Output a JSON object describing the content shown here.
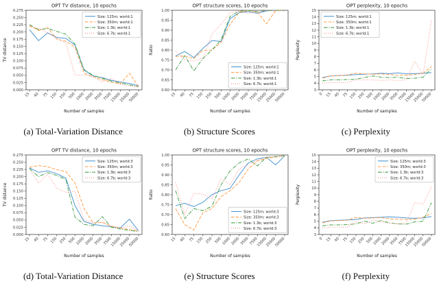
{
  "chart_data": [
    {
      "type": "line",
      "title": "OPT TV distance, 10 epochs",
      "xlabel": "Number of samples",
      "ylabel": "TV distance",
      "caption": "(a) Total-Variation Distance",
      "x": [
        "15",
        "40",
        "75",
        "150",
        "250",
        "500",
        "1000",
        "2000",
        "3500",
        "7500",
        "15000",
        "25000",
        "50000"
      ],
      "ylim": [
        0,
        0.275
      ],
      "yticks": [
        "0.000",
        "0.025",
        "0.050",
        "0.075",
        "0.100",
        "0.125",
        "0.150",
        "0.175",
        "0.200",
        "0.225",
        "0.250",
        "0.275"
      ],
      "grid": false,
      "legend_pos": "top-right",
      "series": [
        {
          "name": "Size: 125m; world:1",
          "color": "#4c96d0",
          "dash": "solid",
          "values": [
            0.208,
            0.17,
            0.197,
            0.181,
            0.178,
            0.155,
            0.068,
            0.048,
            0.042,
            0.033,
            0.027,
            0.022,
            0.014
          ]
        },
        {
          "name": "Size: 350m; world:1",
          "color": "#ff9e4a",
          "dash": "dashed",
          "values": [
            0.222,
            0.205,
            0.215,
            0.175,
            0.168,
            0.148,
            0.058,
            0.045,
            0.035,
            0.026,
            0.021,
            0.057,
            0.011
          ]
        },
        {
          "name": "Size: 1.3b; world:1",
          "color": "#46a049",
          "dash": "dashdot",
          "values": [
            0.225,
            0.208,
            0.212,
            0.202,
            0.192,
            0.158,
            0.07,
            0.05,
            0.04,
            0.03,
            0.024,
            0.017,
            0.011
          ]
        },
        {
          "name": "Size: 6.7b; world:1",
          "color": "#ff8e8a",
          "dash": "dotted",
          "values": [
            0.218,
            0.213,
            0.196,
            0.178,
            0.163,
            0.05,
            0.052,
            0.046,
            0.027,
            0.04,
            0.019,
            0.014,
            0.009
          ]
        }
      ]
    },
    {
      "type": "line",
      "title": "OPT structure scores, 10 epochs",
      "xlabel": "Number of samples",
      "ylabel": "Ratio",
      "caption": "(b) Structure Scores",
      "x": [
        "15",
        "40",
        "75",
        "150",
        "250",
        "500",
        "1000",
        "2000",
        "3500",
        "7500",
        "15000",
        "25000",
        "50000"
      ],
      "ylim": [
        0.6,
        1.0
      ],
      "yticks": [
        "0.60",
        "0.65",
        "0.70",
        "0.75",
        "0.80",
        "0.85",
        "0.90",
        "0.95",
        "1.00"
      ],
      "grid": false,
      "legend_pos": "bottom-right",
      "series": [
        {
          "name": "Size: 125m; world:1",
          "color": "#4c96d0",
          "dash": "solid",
          "values": [
            0.77,
            0.793,
            0.762,
            0.808,
            0.848,
            0.843,
            0.958,
            0.988,
            0.993,
            0.985,
            0.997,
            1.0,
            0.998
          ]
        },
        {
          "name": "Size: 350m; world:1",
          "color": "#ff9e4a",
          "dash": "dashed",
          "values": [
            0.768,
            0.77,
            0.757,
            0.798,
            0.8,
            0.838,
            0.93,
            0.99,
            0.998,
            0.992,
            0.932,
            0.998,
            1.0
          ]
        },
        {
          "name": "Size: 1.3b; world:1",
          "color": "#46a049",
          "dash": "dashdot",
          "values": [
            0.7,
            0.772,
            0.695,
            0.757,
            0.8,
            0.852,
            0.97,
            0.995,
            1.0,
            0.993,
            0.998,
            1.0,
            1.0
          ]
        },
        {
          "name": "Size: 6.7b; world:1",
          "color": "#ff8e8a",
          "dash": "dotted",
          "values": [
            0.795,
            0.752,
            0.745,
            0.76,
            0.88,
            0.93,
            0.988,
            0.998,
            0.985,
            0.99,
            1.0,
            0.997,
            1.0
          ]
        }
      ]
    },
    {
      "type": "line",
      "title": "OPT perplexity, 10 epochs",
      "xlabel": "Number of samples",
      "ylabel": "Perplexity",
      "caption": "(c) Perplexity",
      "x": [
        "0",
        "15",
        "40",
        "75",
        "150",
        "250",
        "500",
        "1000",
        "2000",
        "3500",
        "7500",
        "15000",
        "25000",
        "50000"
      ],
      "ylim": [
        3,
        15
      ],
      "yticks": [
        "3",
        "4",
        "5",
        "6",
        "7",
        "8",
        "9",
        "10",
        "11",
        "12",
        "13",
        "14",
        "15"
      ],
      "grid": false,
      "legend_pos": "top-left",
      "series": [
        {
          "name": "Size: 125m; world:1",
          "color": "#4c96d0",
          "dash": "solid",
          "values": [
            4.85,
            5.1,
            5.15,
            5.2,
            5.3,
            5.35,
            5.4,
            5.5,
            5.45,
            5.55,
            5.4,
            5.45,
            5.5,
            5.6
          ]
        },
        {
          "name": "Size: 350m; world:1",
          "color": "#ff9e4a",
          "dash": "dashed",
          "values": [
            4.75,
            5.1,
            5.15,
            5.25,
            5.5,
            5.4,
            5.35,
            5.4,
            5.3,
            5.2,
            5.2,
            5.3,
            5.5,
            6.5
          ]
        },
        {
          "name": "Size: 1.3b; world:1",
          "color": "#46a049",
          "dash": "dashdot",
          "values": [
            4.35,
            4.5,
            4.5,
            4.55,
            4.6,
            4.85,
            5.1,
            4.9,
            4.85,
            4.9,
            4.7,
            4.75,
            4.9,
            6.2
          ]
        },
        {
          "name": "Size: 6.7b; world:1",
          "color": "#ff8e8a",
          "dash": "dotted",
          "values": [
            4.0,
            4.1,
            4.1,
            4.1,
            4.5,
            4.5,
            4.5,
            4.4,
            4.5,
            4.4,
            4.5,
            7.3,
            5.3,
            13.5
          ]
        }
      ]
    },
    {
      "type": "line",
      "title": "OPT TV distance, 10 epochs",
      "xlabel": "Number of samples",
      "ylabel": "TV distance",
      "caption": "(d) Total-Variation Distance",
      "x": [
        "15",
        "40",
        "75",
        "150",
        "250",
        "500",
        "1000",
        "2000",
        "3500",
        "7500",
        "15000",
        "25000",
        "50000"
      ],
      "ylim": [
        0,
        0.275
      ],
      "yticks": [
        "0.000",
        "0.025",
        "0.050",
        "0.075",
        "0.100",
        "0.125",
        "0.150",
        "0.175",
        "0.200",
        "0.225",
        "0.250",
        "0.275"
      ],
      "grid": false,
      "legend_pos": "top-right",
      "series": [
        {
          "name": "Size: 125m; world:3",
          "color": "#4c96d0",
          "dash": "solid",
          "values": [
            0.23,
            0.215,
            0.22,
            0.21,
            0.195,
            0.1,
            0.045,
            0.035,
            0.03,
            0.027,
            0.023,
            0.053,
            0.012
          ]
        },
        {
          "name": "Size: 350m; world:3",
          "color": "#ff9e4a",
          "dash": "dashed",
          "values": [
            0.232,
            0.238,
            0.234,
            0.224,
            0.218,
            0.178,
            0.09,
            0.04,
            0.042,
            0.028,
            0.022,
            0.017,
            0.012
          ]
        },
        {
          "name": "Size: 1.3b; world:3",
          "color": "#46a049",
          "dash": "dashdot",
          "values": [
            0.228,
            0.2,
            0.214,
            0.204,
            0.19,
            0.06,
            0.035,
            0.03,
            0.062,
            0.025,
            0.019,
            0.014,
            0.01
          ]
        },
        {
          "name": "Size: 6.7b; world:3",
          "color": "#ff8e8a",
          "dash": "dotted",
          "values": [
            0.224,
            0.178,
            0.208,
            0.16,
            0.145,
            0.15,
            0.05,
            0.04,
            0.042,
            0.03,
            0.022,
            0.03,
            0.012
          ]
        }
      ]
    },
    {
      "type": "line",
      "title": "OPT structure scores, 10 epochs",
      "xlabel": "Number of samples",
      "ylabel": "Ratio",
      "caption": "(e) Structure Scores",
      "x": [
        "15",
        "40",
        "75",
        "150",
        "250",
        "500",
        "1000",
        "2000",
        "3500",
        "7500",
        "15000",
        "25000",
        "50000"
      ],
      "ylim": [
        0.6,
        1.0
      ],
      "yticks": [
        "0.60",
        "0.65",
        "0.70",
        "0.75",
        "0.80",
        "0.85",
        "0.90",
        "0.95",
        "1.00"
      ],
      "grid": false,
      "legend_pos": "bottom-right",
      "series": [
        {
          "name": "Size: 125m; world:3",
          "color": "#4c96d0",
          "dash": "solid",
          "values": [
            0.745,
            0.757,
            0.74,
            0.762,
            0.8,
            0.82,
            0.832,
            0.9,
            0.96,
            0.98,
            0.988,
            0.95,
            0.995
          ]
        },
        {
          "name": "Size: 350m; world:3",
          "color": "#ff9e4a",
          "dash": "dashed",
          "values": [
            0.73,
            0.65,
            0.622,
            0.71,
            0.73,
            0.79,
            0.82,
            0.862,
            0.93,
            0.97,
            0.982,
            0.99,
            0.995
          ]
        },
        {
          "name": "Size: 1.3b; world:3",
          "color": "#46a049",
          "dash": "dashdot",
          "values": [
            0.82,
            0.68,
            0.73,
            0.72,
            0.742,
            0.85,
            0.92,
            0.96,
            0.98,
            0.945,
            0.988,
            0.992,
            0.996
          ]
        },
        {
          "name": "Size: 6.7b; world:3",
          "color": "#ff8e8a",
          "dash": "dotted",
          "values": [
            0.862,
            0.7,
            0.806,
            0.803,
            0.78,
            0.88,
            0.85,
            0.93,
            0.952,
            0.972,
            0.99,
            0.988,
            0.996
          ]
        }
      ]
    },
    {
      "type": "line",
      "title": "OPT perplexity, 10 epochs",
      "xlabel": "Number of samples",
      "ylabel": "Perplexity",
      "caption": "(f) Perplexity",
      "x": [
        "0",
        "15",
        "40",
        "75",
        "150",
        "250",
        "500",
        "1000",
        "2000",
        "3500",
        "7500",
        "15000",
        "25000",
        "50000"
      ],
      "ylim": [
        3,
        15
      ],
      "yticks": [
        "3",
        "4",
        "5",
        "6",
        "7",
        "8",
        "9",
        "10",
        "11",
        "12",
        "13",
        "14",
        "15"
      ],
      "grid": false,
      "legend_pos": "top-right",
      "series": [
        {
          "name": "Size: 125m; world:3",
          "color": "#4c96d0",
          "dash": "solid",
          "values": [
            4.85,
            5.1,
            5.15,
            5.2,
            5.25,
            5.5,
            5.55,
            5.6,
            5.65,
            5.6,
            5.5,
            5.45,
            5.5,
            5.7
          ]
        },
        {
          "name": "Size: 350m; world:3",
          "color": "#ff9e4a",
          "dash": "dashed",
          "values": [
            4.75,
            5.05,
            5.1,
            5.15,
            5.55,
            5.45,
            5.5,
            5.55,
            5.35,
            5.3,
            5.25,
            5.3,
            5.6,
            6.2
          ]
        },
        {
          "name": "Size: 1.3b; world:3",
          "color": "#46a049",
          "dash": "dashdot",
          "values": [
            4.3,
            4.45,
            4.45,
            4.5,
            4.6,
            5.0,
            4.7,
            5.1,
            4.75,
            4.6,
            4.55,
            4.9,
            5.0,
            7.8
          ]
        },
        {
          "name": "Size: 6.7b; world:3",
          "color": "#ff8e8a",
          "dash": "dotted",
          "values": [
            4.0,
            4.1,
            4.1,
            4.15,
            4.9,
            4.6,
            5.2,
            4.9,
            4.7,
            4.6,
            4.7,
            7.8,
            7.6,
            10.2
          ]
        }
      ]
    }
  ]
}
